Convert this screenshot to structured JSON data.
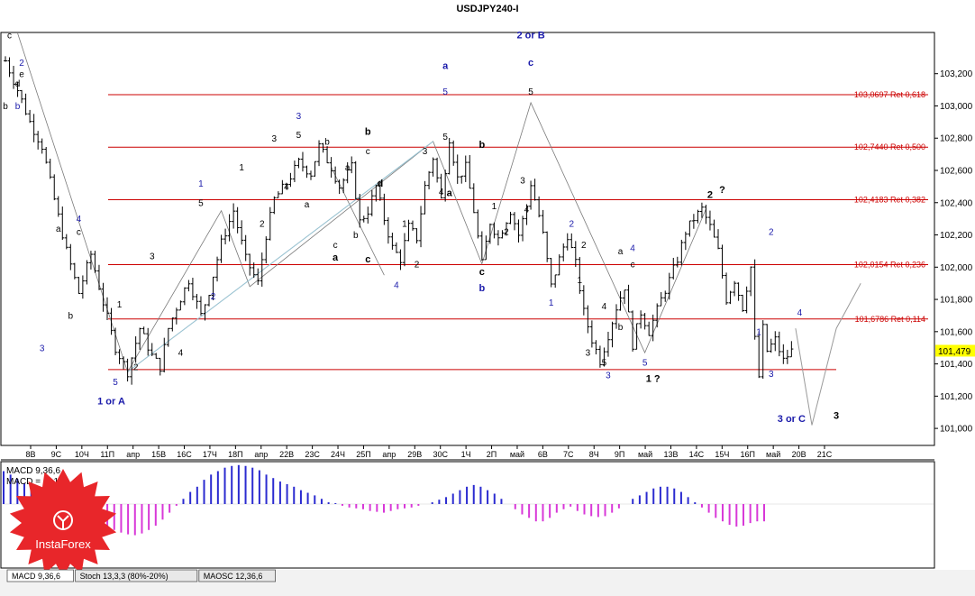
{
  "colors": {
    "candle": "#000000",
    "fib_line": "#cc0000",
    "fib_text": "#cc0000",
    "wave_blue": "#1a1aaa",
    "wave_black": "#000000",
    "trend_line": "#9cc8d8",
    "macd_pos": "#2b2bd0",
    "macd_neg": "#d838d8",
    "price_box": "#ffff00",
    "tab_bg": "#e8e8e8",
    "logo_red": "#e8262a"
  },
  "chart_data": {
    "type": "candlestick",
    "title": "USDJPY240-I",
    "ylim": [
      100.9,
      103.45
    ],
    "y_ticks": [
      "103,200",
      "103,000",
      "102,800",
      "102,600",
      "102,400",
      "102,200",
      "102,000",
      "101,800",
      "101,600",
      "101,400",
      "101,200",
      "101,000"
    ],
    "y_tick_values": [
      103.2,
      103.0,
      102.8,
      102.6,
      102.4,
      102.2,
      102.0,
      101.8,
      101.6,
      101.4,
      101.2,
      101.0
    ],
    "current_price_label": "101,479",
    "current_price": 101.479,
    "x_ticks": [
      "8В",
      "9С",
      "10Ч",
      "11П",
      "апр",
      "15В",
      "16С",
      "17Ч",
      "18П",
      "апр",
      "22В",
      "23С",
      "24Ч",
      "25П",
      "апр",
      "29В",
      "30С",
      "1Ч",
      "2П",
      "май",
      "6В",
      "7С",
      "8Ч",
      "9П",
      "май",
      "13В",
      "14С",
      "15Ч",
      "16П",
      "май",
      "20В",
      "21С"
    ],
    "fib_levels": [
      {
        "value": 103.0697,
        "label": "103,0697 Ret 0,618"
      },
      {
        "value": 102.744,
        "label": "102,7440 Ret 0,500"
      },
      {
        "value": 102.4183,
        "label": "102,4183 Ret 0,382"
      },
      {
        "value": 102.0154,
        "label": "102,0154 Ret 0,236"
      },
      {
        "value": 101.6786,
        "label": "101,6786 Ret 0,114"
      },
      {
        "value": 101.365,
        "label": ""
      }
    ],
    "price_path": [
      [
        0,
        103.28
      ],
      [
        3,
        103.1
      ],
      [
        6,
        102.9
      ],
      [
        9,
        102.75
      ],
      [
        12,
        102.42
      ],
      [
        15,
        102.1
      ],
      [
        18,
        101.84
      ],
      [
        21,
        102.08
      ],
      [
        24,
        101.78
      ],
      [
        27,
        101.5
      ],
      [
        30,
        101.35
      ],
      [
        33,
        101.62
      ],
      [
        36,
        101.45
      ],
      [
        38,
        101.38
      ],
      [
        40,
        101.62
      ],
      [
        42,
        101.75
      ],
      [
        45,
        101.92
      ],
      [
        48,
        101.7
      ],
      [
        50,
        101.85
      ],
      [
        53,
        102.15
      ],
      [
        56,
        102.35
      ],
      [
        59,
        102.05
      ],
      [
        62,
        101.9
      ],
      [
        64,
        102.2
      ],
      [
        66,
        102.42
      ],
      [
        69,
        102.52
      ],
      [
        72,
        102.65
      ],
      [
        75,
        102.58
      ],
      [
        77,
        102.75
      ],
      [
        80,
        102.62
      ],
      [
        82,
        102.5
      ],
      [
        85,
        102.62
      ],
      [
        87,
        102.28
      ],
      [
        89,
        102.35
      ],
      [
        91,
        102.5
      ],
      [
        93,
        102.3
      ],
      [
        95,
        102.12
      ],
      [
        97,
        102.05
      ],
      [
        99,
        102.25
      ],
      [
        101,
        102.18
      ],
      [
        103,
        102.5
      ],
      [
        105,
        102.68
      ],
      [
        107,
        102.42
      ],
      [
        109,
        102.8
      ],
      [
        111,
        102.55
      ],
      [
        113,
        102.62
      ],
      [
        115,
        102.35
      ],
      [
        117,
        102.02
      ],
      [
        119,
        102.28
      ],
      [
        121,
        102.18
      ],
      [
        124,
        102.35
      ],
      [
        126,
        102.2
      ],
      [
        128,
        102.38
      ],
      [
        129,
        102.52
      ],
      [
        131,
        102.32
      ],
      [
        132,
        102.2
      ],
      [
        134,
        101.88
      ],
      [
        136,
        102.05
      ],
      [
        138,
        102.2
      ],
      [
        140,
        102.02
      ],
      [
        142,
        101.72
      ],
      [
        144,
        101.55
      ],
      [
        146,
        101.42
      ],
      [
        148,
        101.58
      ],
      [
        150,
        101.75
      ],
      [
        152,
        101.88
      ],
      [
        154,
        101.52
      ],
      [
        156,
        101.72
      ],
      [
        158,
        101.6
      ],
      [
        161,
        101.8
      ],
      [
        163,
        101.92
      ],
      [
        165,
        102.05
      ],
      [
        167,
        102.22
      ],
      [
        169,
        102.3
      ],
      [
        171,
        102.36
      ],
      [
        173,
        102.25
      ],
      [
        175,
        102.1
      ],
      [
        177,
        101.8
      ],
      [
        179,
        101.92
      ],
      [
        181,
        101.75
      ],
      [
        183,
        102.0
      ],
      [
        184,
        101.55
      ],
      [
        185,
        101.32
      ],
      [
        186,
        101.62
      ],
      [
        187,
        101.48
      ],
      [
        189,
        101.55
      ],
      [
        191,
        101.42
      ],
      [
        193,
        101.48
      ]
    ],
    "projection": [
      [
        194,
        101.62
      ],
      [
        198,
        101.02
      ],
      [
        204,
        101.62
      ],
      [
        210,
        101.9
      ]
    ],
    "trend_lines": [
      [
        [
          3,
          103.45
        ],
        [
          30,
          101.35
        ],
        [
          53,
          102.35
        ],
        [
          60,
          101.88
        ],
        [
          105,
          102.78
        ],
        [
          117,
          102.02
        ],
        [
          129,
          103.02
        ],
        [
          157,
          101.47
        ],
        [
          172,
          102.36
        ]
      ],
      [
        [
          30,
          101.35
        ],
        [
          105,
          102.78
        ]
      ],
      [
        [
          80,
          102.62
        ],
        [
          93,
          101.95
        ]
      ]
    ],
    "wave_labels": [
      {
        "text": "c",
        "t": 1,
        "v": 103.42,
        "color": "black",
        "bold": false
      },
      {
        "text": "2",
        "t": 4,
        "v": 103.25,
        "color": "blue",
        "bold": false
      },
      {
        "text": "e",
        "t": 4,
        "v": 103.18,
        "color": "black",
        "bold": false
      },
      {
        "text": "d",
        "t": 3,
        "v": 103.12,
        "color": "black",
        "bold": false
      },
      {
        "text": "b",
        "t": 0,
        "v": 102.98,
        "color": "black",
        "bold": false
      },
      {
        "text": "b",
        "t": 3,
        "v": 102.98,
        "color": "blue",
        "bold": false
      },
      {
        "text": "a",
        "t": 13,
        "v": 102.22,
        "color": "black",
        "bold": false
      },
      {
        "text": "4",
        "t": 18,
        "v": 102.28,
        "color": "blue",
        "bold": false
      },
      {
        "text": "c",
        "t": 18,
        "v": 102.2,
        "color": "black",
        "bold": false
      },
      {
        "text": "b",
        "t": 16,
        "v": 101.68,
        "color": "black",
        "bold": false
      },
      {
        "text": "3",
        "t": 9,
        "v": 101.48,
        "color": "blue",
        "bold": false
      },
      {
        "text": "1",
        "t": 28,
        "v": 101.75,
        "color": "black",
        "bold": false
      },
      {
        "text": "5",
        "t": 27,
        "v": 101.27,
        "color": "blue",
        "bold": false
      },
      {
        "text": "2",
        "t": 32,
        "v": 101.36,
        "color": "black",
        "bold": false
      },
      {
        "text": "1 or A",
        "t": 26,
        "v": 101.15,
        "color": "blue",
        "bold": true
      },
      {
        "text": "3",
        "t": 36,
        "v": 102.05,
        "color": "black",
        "bold": false
      },
      {
        "text": "4",
        "t": 43,
        "v": 101.45,
        "color": "black",
        "bold": false
      },
      {
        "text": "1",
        "t": 48,
        "v": 102.5,
        "color": "blue",
        "bold": false
      },
      {
        "text": "5",
        "t": 48,
        "v": 102.38,
        "color": "black",
        "bold": false
      },
      {
        "text": "2",
        "t": 51,
        "v": 101.8,
        "color": "blue",
        "bold": false
      },
      {
        "text": "1",
        "t": 58,
        "v": 102.6,
        "color": "black",
        "bold": false
      },
      {
        "text": "2",
        "t": 63,
        "v": 102.25,
        "color": "black",
        "bold": false
      },
      {
        "text": "3",
        "t": 66,
        "v": 102.78,
        "color": "black",
        "bold": false
      },
      {
        "text": "4",
        "t": 69,
        "v": 102.48,
        "color": "black",
        "bold": false
      },
      {
        "text": "3",
        "t": 72,
        "v": 102.92,
        "color": "blue",
        "bold": false
      },
      {
        "text": "5",
        "t": 72,
        "v": 102.8,
        "color": "black",
        "bold": false
      },
      {
        "text": "b",
        "t": 79,
        "v": 102.76,
        "color": "black",
        "bold": false
      },
      {
        "text": "a",
        "t": 74,
        "v": 102.37,
        "color": "black",
        "bold": false
      },
      {
        "text": "a",
        "t": 84,
        "v": 102.6,
        "color": "black",
        "bold": false
      },
      {
        "text": "b",
        "t": 89,
        "v": 102.82,
        "color": "black",
        "bold": true
      },
      {
        "text": "c",
        "t": 89,
        "v": 102.7,
        "color": "black",
        "bold": false
      },
      {
        "text": "d",
        "t": 92,
        "v": 102.5,
        "color": "black",
        "bold": true
      },
      {
        "text": "c",
        "t": 81,
        "v": 102.12,
        "color": "black",
        "bold": false
      },
      {
        "text": "a",
        "t": 81,
        "v": 102.04,
        "color": "black",
        "bold": true
      },
      {
        "text": "b",
        "t": 86,
        "v": 102.18,
        "color": "black",
        "bold": false
      },
      {
        "text": "c",
        "t": 89,
        "v": 102.03,
        "color": "black",
        "bold": true
      },
      {
        "text": "1",
        "t": 98,
        "v": 102.25,
        "color": "black",
        "bold": false
      },
      {
        "text": "2",
        "t": 101,
        "v": 102.0,
        "color": "black",
        "bold": false
      },
      {
        "text": "4",
        "t": 96,
        "v": 101.87,
        "color": "blue",
        "bold": false
      },
      {
        "text": "3",
        "t": 103,
        "v": 102.7,
        "color": "black",
        "bold": false
      },
      {
        "text": "4",
        "t": 107,
        "v": 102.45,
        "color": "black",
        "bold": false
      },
      {
        "text": "a",
        "t": 109,
        "v": 102.44,
        "color": "black",
        "bold": true
      },
      {
        "text": "5",
        "t": 108,
        "v": 102.79,
        "color": "black",
        "bold": false
      },
      {
        "text": "a",
        "t": 108,
        "v": 103.23,
        "color": "blue",
        "bold": true
      },
      {
        "text": "5",
        "t": 108,
        "v": 103.07,
        "color": "blue",
        "bold": false
      },
      {
        "text": "b",
        "t": 117,
        "v": 102.74,
        "color": "black",
        "bold": true
      },
      {
        "text": "c",
        "t": 117,
        "v": 101.95,
        "color": "black",
        "bold": true
      },
      {
        "text": "b",
        "t": 117,
        "v": 101.85,
        "color": "blue",
        "bold": true
      },
      {
        "text": "1",
        "t": 120,
        "v": 102.36,
        "color": "black",
        "bold": false
      },
      {
        "text": "2",
        "t": 123,
        "v": 102.2,
        "color": "black",
        "bold": false
      },
      {
        "text": "3",
        "t": 127,
        "v": 102.52,
        "color": "black",
        "bold": false
      },
      {
        "text": "4",
        "t": 128,
        "v": 102.34,
        "color": "black",
        "bold": false
      },
      {
        "text": "2 or B",
        "t": 129,
        "v": 103.42,
        "color": "blue",
        "bold": true
      },
      {
        "text": "c",
        "t": 129,
        "v": 103.25,
        "color": "blue",
        "bold": true
      },
      {
        "text": "5",
        "t": 129,
        "v": 103.07,
        "color": "black",
        "bold": false
      },
      {
        "text": "1",
        "t": 134,
        "v": 101.76,
        "color": "blue",
        "bold": false
      },
      {
        "text": "2",
        "t": 139,
        "v": 102.25,
        "color": "blue",
        "bold": false
      },
      {
        "text": "2",
        "t": 142,
        "v": 102.12,
        "color": "black",
        "bold": false
      },
      {
        "text": "1",
        "t": 141,
        "v": 101.9,
        "color": "black",
        "bold": false
      },
      {
        "text": "3",
        "t": 143,
        "v": 101.45,
        "color": "black",
        "bold": false
      },
      {
        "text": "4",
        "t": 147,
        "v": 101.74,
        "color": "black",
        "bold": false
      },
      {
        "text": "5",
        "t": 147,
        "v": 101.39,
        "color": "black",
        "bold": false
      },
      {
        "text": "3",
        "t": 148,
        "v": 101.31,
        "color": "blue",
        "bold": false
      },
      {
        "text": "a",
        "t": 151,
        "v": 102.08,
        "color": "black",
        "bold": false
      },
      {
        "text": "4",
        "t": 154,
        "v": 102.1,
        "color": "blue",
        "bold": false
      },
      {
        "text": "c",
        "t": 154,
        "v": 102.0,
        "color": "black",
        "bold": false
      },
      {
        "text": "b",
        "t": 151,
        "v": 101.61,
        "color": "black",
        "bold": false
      },
      {
        "text": "5",
        "t": 157,
        "v": 101.39,
        "color": "blue",
        "bold": false
      },
      {
        "text": "1 ?",
        "t": 159,
        "v": 101.29,
        "color": "black",
        "bold": true
      },
      {
        "text": "2",
        "t": 173,
        "v": 102.43,
        "color": "black",
        "bold": true
      },
      {
        "text": "?",
        "t": 176,
        "v": 102.46,
        "color": "black",
        "bold": true
      },
      {
        "text": "2",
        "t": 188,
        "v": 102.2,
        "color": "blue",
        "bold": false
      },
      {
        "text": "1",
        "t": 185,
        "v": 101.58,
        "color": "blue",
        "bold": false
      },
      {
        "text": "4",
        "t": 195,
        "v": 101.7,
        "color": "blue",
        "bold": false
      },
      {
        "text": "3",
        "t": 188,
        "v": 101.32,
        "color": "blue",
        "bold": false
      },
      {
        "text": "3 or C",
        "t": 193,
        "v": 101.04,
        "color": "blue",
        "bold": true
      },
      {
        "text": "3",
        "t": 204,
        "v": 101.06,
        "color": "black",
        "bold": true
      }
    ],
    "indicator": {
      "name": "MACD 9,36,6",
      "value_label": "MACD = -0,10",
      "histogram": [
        0.38,
        0.34,
        0.29,
        0.24,
        0.2,
        0.15,
        0.1,
        0.05,
        0.0,
        -0.05,
        -0.1,
        -0.13,
        -0.16,
        -0.2,
        -0.24,
        -0.27,
        -0.3,
        -0.33,
        -0.35,
        -0.36,
        -0.34,
        -0.3,
        -0.25,
        -0.18,
        -0.1,
        -0.02,
        0.06,
        0.14,
        0.2,
        0.28,
        0.34,
        0.38,
        0.42,
        0.44,
        0.45,
        0.44,
        0.42,
        0.39,
        0.34,
        0.3,
        0.26,
        0.23,
        0.2,
        0.16,
        0.13,
        0.1,
        0.06,
        0.02,
        0.01,
        -0.02,
        -0.04,
        -0.05,
        -0.06,
        -0.08,
        -0.09,
        -0.1,
        -0.08,
        -0.06,
        -0.05,
        -0.04,
        -0.02,
        0.0,
        0.02,
        0.05,
        0.08,
        0.12,
        0.16,
        0.2,
        0.22,
        0.2,
        0.16,
        0.12,
        0.06,
        0.0,
        -0.06,
        -0.12,
        -0.16,
        -0.2,
        -0.2,
        -0.16,
        -0.1,
        -0.06,
        -0.03,
        -0.08,
        -0.12,
        -0.14,
        -0.15,
        -0.14,
        -0.1,
        -0.05,
        0.0,
        0.06,
        0.1,
        0.14,
        0.18,
        0.2,
        0.2,
        0.18,
        0.14,
        0.08,
        0.02,
        -0.04,
        -0.1,
        -0.16,
        -0.2,
        -0.24,
        -0.26,
        -0.25,
        -0.22,
        -0.2,
        -0.2
      ],
      "range": [
        -0.5,
        0.5
      ]
    }
  },
  "tabs": [
    {
      "label": "MACD 9,36,6"
    },
    {
      "label": "Stoch 13,3,3 (80%-20%)"
    },
    {
      "label": "MAOSC 12,36,6"
    }
  ],
  "logo": {
    "text": "InstaForex"
  }
}
